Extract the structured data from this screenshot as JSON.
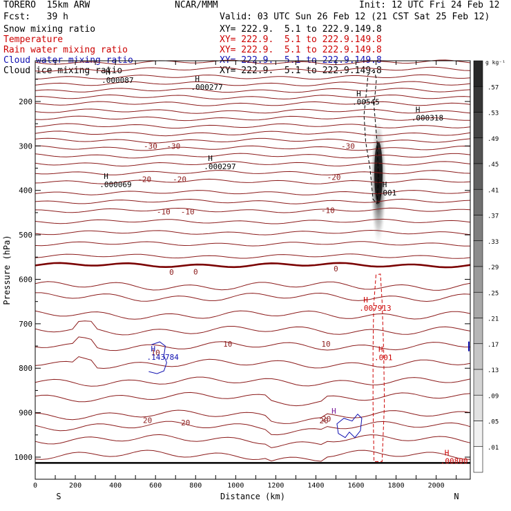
{
  "header": {
    "model": "TORERO  15km ARW",
    "org": "NCAR/MMM",
    "init": "Init: 12 UTC Fri 24 Feb 12",
    "fcst": "Fcst:   39 h",
    "valid": "Valid: 03 UTC Sun 26 Feb 12 (21 CST Sat 25 Feb 12)"
  },
  "fields": [
    {
      "name": "Snow mixing ratio",
      "color": "#000000",
      "xy": "XY= 222.9.  5.1 to 222.9.149.8"
    },
    {
      "name": "Temperature",
      "color": "#cc0000",
      "xy": "XY= 222.9.  5.1 to 222.9.149.8"
    },
    {
      "name": "Rain water mixing ratio",
      "color": "#cc0000",
      "xy": "XY= 222.9.  5.1 to 222.9.149.8"
    },
    {
      "name": "Cloud water mixing ratio",
      "color": "#1010b0",
      "xy": "XY= 222.9.  5.1 to 222.9.149.8"
    },
    {
      "name": "Cloud ice mixing ratio",
      "color": "#000000",
      "xy": "XY= 222.9.  5.1 to 222.9.149.8"
    }
  ],
  "colors": {
    "isotherm": "#8b1a1a",
    "freezing": "#7a0000",
    "rain": "#cc0000",
    "cloud_water": "#1010b0",
    "snow": "#000000"
  },
  "chart_data": {
    "type": "contour cross-section",
    "xlabel": "Distance (km)",
    "ylabel": "Pressure (hPa)",
    "x_ticks": [
      0,
      100,
      200,
      300,
      400,
      500,
      600,
      700,
      800,
      900,
      1000,
      1100,
      1200,
      1300,
      1400,
      1500,
      1600,
      1700,
      1800,
      1900,
      2000,
      2100
    ],
    "x_tick_labels": [
      "0",
      "",
      "200",
      "",
      "400",
      "",
      "600",
      "",
      "800",
      "",
      "1000",
      "",
      "1200",
      "",
      "1400",
      "",
      "1600",
      "",
      "1800",
      "",
      "2000",
      ""
    ],
    "xlim": [
      0,
      2170
    ],
    "y_ticks": [
      200,
      300,
      400,
      500,
      600,
      700,
      800,
      900,
      1000
    ],
    "ylim": [
      100,
      1050
    ],
    "left_end_label": "S",
    "right_end_label": "N",
    "colorbar": {
      "unit": "g kg⁻¹",
      "levels": [
        ".01",
        ".05",
        ".09",
        ".13",
        ".17",
        ".21",
        ".25",
        ".29",
        ".33",
        ".37",
        ".41",
        ".45",
        ".49",
        ".53",
        ".57"
      ]
    },
    "isotherm_pressures": [
      112,
      128,
      145,
      160,
      175,
      190,
      205,
      222,
      238,
      255,
      272,
      288,
      305,
      322,
      340,
      360,
      380,
      405,
      425,
      445,
      470,
      495,
      520,
      548,
      568,
      615,
      640,
      680,
      715,
      750,
      790,
      830,
      865,
      905,
      930,
      960,
      995
    ],
    "isotherm_labels": [
      {
        "text": "-30",
        "x": 575,
        "p": 300
      },
      {
        "text": "-30",
        "x": 690,
        "p": 300
      },
      {
        "text": "-30",
        "x": 1560,
        "p": 300
      },
      {
        "text": "-20",
        "x": 545,
        "p": 375
      },
      {
        "text": "-20",
        "x": 720,
        "p": 375
      },
      {
        "text": "-20",
        "x": 1490,
        "p": 370
      },
      {
        "text": "-10",
        "x": 640,
        "p": 448
      },
      {
        "text": "-10",
        "x": 760,
        "p": 448
      },
      {
        "text": "-10",
        "x": 1460,
        "p": 445
      },
      {
        "text": "0",
        "x": 680,
        "p": 584
      },
      {
        "text": "0",
        "x": 800,
        "p": 583
      },
      {
        "text": "0",
        "x": 1500,
        "p": 576
      },
      {
        "text": "10",
        "x": 600,
        "p": 765
      },
      {
        "text": "10",
        "x": 960,
        "p": 745
      },
      {
        "text": "10",
        "x": 1450,
        "p": 745
      },
      {
        "text": "20",
        "x": 560,
        "p": 917
      },
      {
        "text": "20",
        "x": 750,
        "p": 922
      },
      {
        "text": "20",
        "x": 1440,
        "p": 918
      }
    ],
    "maxima_labels": [
      {
        "text": ".000087",
        "x": 345,
        "p": 158,
        "color": "#000000"
      },
      {
        "text": ".000277",
        "x": 790,
        "p": 174,
        "color": "#000000"
      },
      {
        "text": ".00545",
        "x": 1595,
        "p": 207,
        "color": "#000000"
      },
      {
        "text": ".000318",
        "x": 1890,
        "p": 243,
        "color": "#000000"
      },
      {
        "text": ".000297",
        "x": 855,
        "p": 352,
        "color": "#000000"
      },
      {
        "text": ".000069",
        "x": 335,
        "p": 393,
        "color": "#000000"
      },
      {
        "text": ".001",
        "x": 1725,
        "p": 411,
        "color": "#000000"
      },
      {
        "text": ".007913",
        "x": 1630,
        "p": 671,
        "color": "#cc0000"
      },
      {
        "text": ".143784",
        "x": 570,
        "p": 781,
        "color": "#1010b0"
      },
      {
        "text": ".001",
        "x": 1705,
        "p": 782,
        "color": "#cc0000"
      },
      {
        "text": ".00800",
        "x": 2035,
        "p": 1015,
        "color": "#cc0000"
      }
    ]
  }
}
